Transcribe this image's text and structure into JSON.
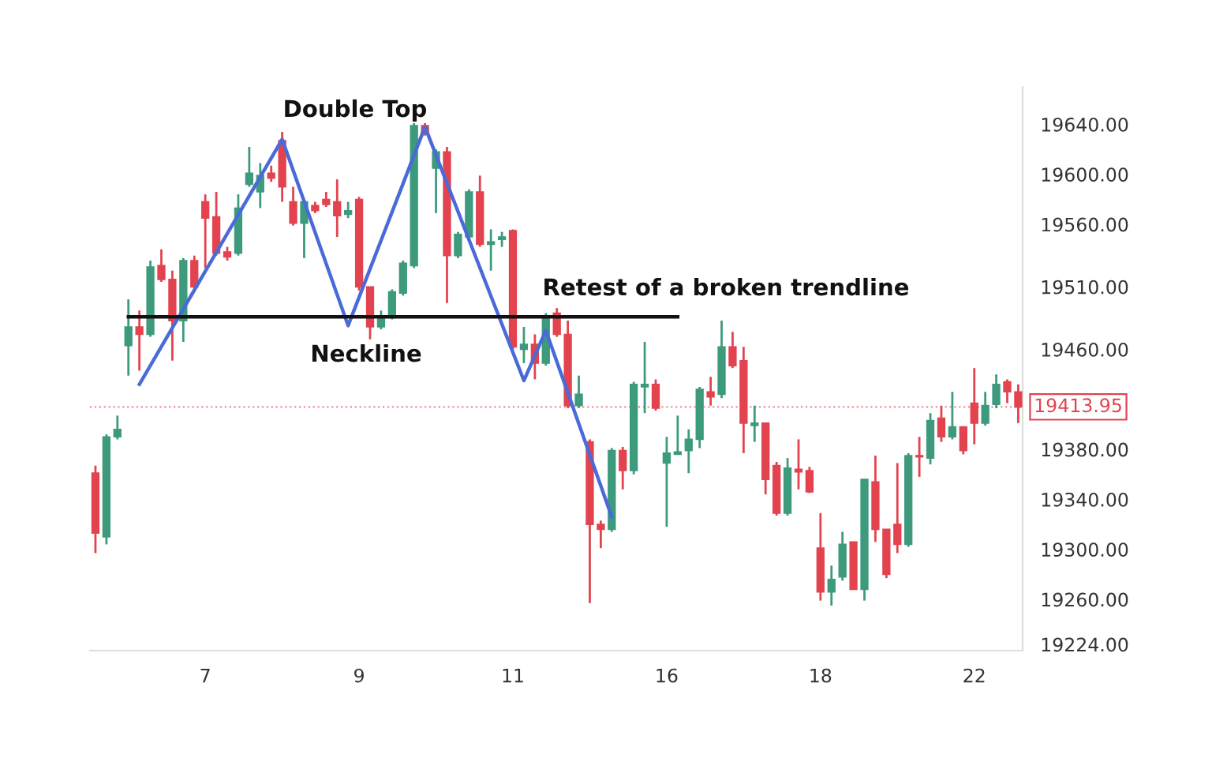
{
  "chart_data": {
    "type": "candlestick",
    "categories": [
      null,
      null,
      null,
      null,
      null,
      null,
      null,
      null,
      null,
      null,
      "7",
      null,
      null,
      null,
      null,
      null,
      null,
      null,
      null,
      null,
      null,
      null,
      null,
      null,
      "9",
      null,
      null,
      null,
      null,
      null,
      null,
      null,
      null,
      null,
      null,
      null,
      null,
      null,
      "11",
      null,
      null,
      null,
      null,
      null,
      null,
      null,
      null,
      null,
      null,
      null,
      null,
      null,
      "16",
      null,
      null,
      null,
      null,
      null,
      null,
      null,
      null,
      null,
      null,
      null,
      null,
      null,
      "18",
      null,
      null,
      null,
      null,
      null,
      null,
      null,
      null,
      null,
      null,
      null,
      null,
      null,
      "22",
      null,
      null,
      null,
      null
    ],
    "ohlc": [
      [
        19361,
        19367,
        19297,
        19313
      ],
      [
        19310,
        19392,
        19304,
        19390
      ],
      [
        19390,
        19407,
        19388,
        19396
      ],
      [
        19463,
        19500,
        19439,
        19478
      ],
      [
        19478,
        19491,
        19443,
        19472
      ],
      [
        19472,
        19531,
        19470,
        19526
      ],
      [
        19527,
        19540,
        19514,
        19516
      ],
      [
        19516,
        19523,
        19451,
        19483
      ],
      [
        19483,
        19533,
        19466,
        19531
      ],
      [
        19531,
        19535,
        19508,
        19510
      ],
      [
        19578,
        19584,
        19525,
        19565
      ],
      [
        19566,
        19586,
        19535,
        19537
      ],
      [
        19538,
        19542,
        19531,
        19534
      ],
      [
        19537,
        19584,
        19535,
        19573
      ],
      [
        19592,
        19622,
        19590,
        19601
      ],
      [
        19586,
        19609,
        19573,
        19599
      ],
      [
        19601,
        19607,
        19594,
        19597
      ],
      [
        19627,
        19634,
        19578,
        19590
      ],
      [
        19578,
        19590,
        19559,
        19561
      ],
      [
        19561,
        19580,
        19533,
        19578
      ],
      [
        19575,
        19578,
        19569,
        19571
      ],
      [
        19580,
        19586,
        19574,
        19576
      ],
      [
        19578,
        19596,
        19550,
        19567
      ],
      [
        19568,
        19578,
        19565,
        19571
      ],
      [
        19580,
        19582,
        19507,
        19510
      ],
      [
        19510,
        19510,
        19468,
        19478
      ],
      [
        19478,
        19491,
        19476,
        19485
      ],
      [
        19487,
        19508,
        19484,
        19506
      ],
      [
        19505,
        19531,
        19503,
        19529
      ],
      [
        19527,
        19641,
        19525,
        19639
      ],
      [
        19639,
        19641,
        19631,
        19633
      ],
      [
        19605,
        19620,
        19569,
        19618
      ],
      [
        19618,
        19622,
        19497,
        19535
      ],
      [
        19535,
        19554,
        19533,
        19552
      ],
      [
        19550,
        19588,
        19548,
        19586
      ],
      [
        19586,
        19599,
        19542,
        19544
      ],
      [
        19544,
        19556,
        19523,
        19546
      ],
      [
        19548,
        19554,
        19542,
        19550
      ],
      [
        19555,
        19556,
        19460,
        19462
      ],
      [
        19460,
        19478,
        19449,
        19464
      ],
      [
        19464,
        19472,
        19436,
        19449
      ],
      [
        19449,
        19489,
        19447,
        19485
      ],
      [
        19489,
        19493,
        19470,
        19472
      ],
      [
        19472,
        19483,
        19413,
        19415
      ],
      [
        19415,
        19439,
        19413,
        19424
      ],
      [
        19386,
        19388,
        19257,
        19320
      ],
      [
        19320,
        19323,
        19301,
        19316
      ],
      [
        19316,
        19381,
        19314,
        19379
      ],
      [
        19379,
        19382,
        19348,
        19363
      ],
      [
        19363,
        19434,
        19360,
        19432
      ],
      [
        19430,
        19466,
        19409,
        19432
      ],
      [
        19432,
        19436,
        19411,
        19413
      ],
      [
        19369,
        19390,
        19318,
        19377
      ],
      [
        19376,
        19407,
        19376,
        19378
      ],
      [
        19379,
        19396,
        19361,
        19388
      ],
      [
        19388,
        19430,
        19381,
        19428
      ],
      [
        19426,
        19438,
        19415,
        19422
      ],
      [
        19424,
        19483,
        19421,
        19462
      ],
      [
        19462,
        19474,
        19445,
        19447
      ],
      [
        19451,
        19462,
        19377,
        19401
      ],
      [
        19399,
        19415,
        19386,
        19401
      ],
      [
        19401,
        19401,
        19344,
        19356
      ],
      [
        19367,
        19370,
        19327,
        19329
      ],
      [
        19329,
        19373,
        19327,
        19365
      ],
      [
        19364,
        19388,
        19348,
        19362
      ],
      [
        19363,
        19366,
        19345,
        19346
      ],
      [
        19301,
        19329,
        19259,
        19266
      ],
      [
        19266,
        19287,
        19255,
        19276
      ],
      [
        19278,
        19314,
        19275,
        19304
      ],
      [
        19306,
        19306,
        19268,
        19268
      ],
      [
        19268,
        19356,
        19259,
        19356
      ],
      [
        19354,
        19375,
        19306,
        19316
      ],
      [
        19316,
        19316,
        19277,
        19280
      ],
      [
        19320,
        19369,
        19297,
        19304
      ],
      [
        19304,
        19377,
        19302,
        19375
      ],
      [
        19375,
        19390,
        19358,
        19374
      ],
      [
        19373,
        19409,
        19368,
        19403
      ],
      [
        19405,
        19415,
        19386,
        19390
      ],
      [
        19390,
        19426,
        19388,
        19398
      ],
      [
        19398,
        19398,
        19376,
        19379
      ],
      [
        19417,
        19445,
        19384,
        19401
      ],
      [
        19401,
        19426,
        19399,
        19415
      ],
      [
        19416,
        19440,
        19413,
        19432
      ],
      [
        19434,
        19436,
        19417,
        19426
      ],
      [
        19426,
        19432,
        19401,
        19413.95
      ]
    ],
    "colors": [
      "#e2434f",
      "#3d9a7c",
      "#3d9a7c",
      "#3d9a7c",
      "#e2434f",
      "#3d9a7c",
      "#e2434f",
      "#e2434f",
      "#3d9a7c",
      "#e2434f",
      "#e2434f",
      "#e2434f",
      "#e2434f",
      "#3d9a7c",
      "#3d9a7c",
      "#3d9a7c",
      "#e2434f",
      "#e2434f",
      "#e2434f",
      "#3d9a7c",
      "#e2434f",
      "#e2434f",
      "#e2434f",
      "#3d9a7c",
      "#e2434f",
      "#e2434f",
      "#3d9a7c",
      "#3d9a7c",
      "#3d9a7c",
      "#3d9a7c",
      "#e2434f",
      "#3d9a7c",
      "#e2434f",
      "#3d9a7c",
      "#3d9a7c",
      "#e2434f",
      "#3d9a7c",
      "#3d9a7c",
      "#e2434f",
      "#3d9a7c",
      "#e2434f",
      "#3d9a7c",
      "#e2434f",
      "#e2434f",
      "#3d9a7c",
      "#e2434f",
      "#e2434f",
      "#3d9a7c",
      "#e2434f",
      "#3d9a7c",
      "#3d9a7c",
      "#e2434f",
      "#3d9a7c",
      "#3d9a7c",
      "#3d9a7c",
      "#3d9a7c",
      "#e2434f",
      "#3d9a7c",
      "#e2434f",
      "#e2434f",
      "#3d9a7c",
      "#e2434f",
      "#e2434f",
      "#3d9a7c",
      "#e2434f",
      "#e2434f",
      "#e2434f",
      "#3d9a7c",
      "#3d9a7c",
      "#e2434f",
      "#3d9a7c",
      "#e2434f",
      "#e2434f",
      "#e2434f",
      "#3d9a7c",
      "#e2434f",
      "#3d9a7c",
      "#e2434f",
      "#3d9a7c",
      "#e2434f",
      "#e2434f",
      "#3d9a7c",
      "#3d9a7c",
      "#e2434f",
      "#e2434f"
    ],
    "series": [
      {
        "type": "line",
        "color": "#4a6ad8",
        "values": [
          null,
          null,
          null,
          null,
          19432,
          null,
          null,
          null,
          null,
          null,
          null,
          null,
          null,
          null,
          null,
          null,
          null,
          19628,
          null,
          null,
          null,
          null,
          null,
          19479,
          null,
          null,
          null,
          null,
          null,
          null,
          19638,
          null,
          null,
          null,
          null,
          null,
          null,
          null,
          null,
          19435,
          null,
          19475,
          null,
          null,
          null,
          null,
          null,
          19326,
          null,
          null,
          null,
          null,
          null,
          null,
          null,
          null,
          null,
          null,
          null,
          null,
          null,
          null,
          null,
          null,
          null,
          null,
          null,
          null,
          null,
          null,
          null,
          null,
          null,
          null,
          null,
          null,
          null,
          null,
          null,
          null,
          null,
          null,
          null,
          null,
          null
        ]
      },
      {
        "type": "line",
        "color": "#111111",
        "values": [
          null,
          null,
          null,
          19486,
          null,
          null,
          null,
          null,
          null,
          null,
          null,
          null,
          null,
          null,
          null,
          null,
          null,
          null,
          null,
          null,
          null,
          null,
          null,
          null,
          null,
          null,
          null,
          null,
          null,
          null,
          null,
          null,
          null,
          null,
          null,
          null,
          null,
          null,
          null,
          null,
          null,
          null,
          null,
          null,
          null,
          null,
          null,
          null,
          null,
          null,
          null,
          null,
          null,
          19486,
          null,
          null,
          null,
          null,
          null,
          null,
          null,
          null,
          null,
          null,
          null,
          null,
          null,
          null,
          null,
          null,
          null,
          null,
          null,
          null,
          null,
          null,
          null,
          null,
          null,
          null,
          null,
          null,
          null,
          null,
          null
        ]
      }
    ],
    "annotations": [
      "Double Top",
      "Neckline",
      "Retest of a broken trendline"
    ],
    "ref_lines": [
      {
        "axis": "y",
        "value": 19413.95,
        "label": "19413.95",
        "color": "#e2434f",
        "line_style": "dotted"
      }
    ],
    "ylim": [
      19219,
      19670
    ],
    "yticks": [
      {
        "value": 19224,
        "label": "19224.00"
      },
      {
        "value": 19260,
        "label": "19260.00"
      },
      {
        "value": 19300,
        "label": "19300.00"
      },
      {
        "value": 19340,
        "label": "19340.00"
      },
      {
        "value": 19380,
        "label": "19380.00"
      },
      {
        "value": 19460,
        "label": "19460.00"
      },
      {
        "value": 19510,
        "label": "19510.00"
      },
      {
        "value": 19560,
        "label": "19560.00"
      },
      {
        "value": 19600,
        "label": "19600.00"
      },
      {
        "value": 19640,
        "label": "19640.00"
      }
    ],
    "grid": false,
    "legend": false
  }
}
